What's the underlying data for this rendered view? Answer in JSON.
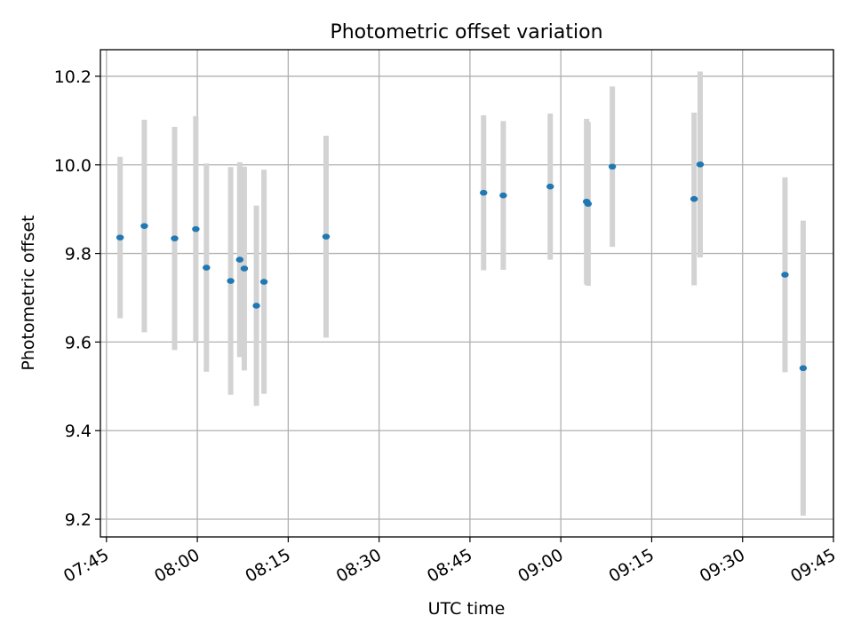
{
  "chart_data": {
    "type": "scatter",
    "title": "Photometric offset variation",
    "xlabel": "UTC time",
    "ylabel": "Photometric offset",
    "xlim": [
      "07:44",
      "09:45"
    ],
    "ylim": [
      9.16,
      10.26
    ],
    "xticks": [
      "07:45",
      "08:00",
      "08:15",
      "08:30",
      "08:45",
      "09:00",
      "09:15",
      "09:30",
      "09:45"
    ],
    "yticks": [
      9.2,
      9.4,
      9.6,
      9.8,
      10.0,
      10.2
    ],
    "grid": true,
    "point_color": "#1f77b4",
    "errorbar_color": "#d3d3d3",
    "series": [
      {
        "points": [
          {
            "x": "07:47:15",
            "y": 9.836,
            "err": 0.182
          },
          {
            "x": "07:51:15",
            "y": 9.862,
            "err": 0.24
          },
          {
            "x": "07:56:15",
            "y": 9.834,
            "err": 0.252
          },
          {
            "x": "07:59:45",
            "y": 9.855,
            "err": 0.255
          },
          {
            "x": "08:01:30",
            "y": 9.768,
            "err": 0.235
          },
          {
            "x": "08:05:30",
            "y": 9.738,
            "err": 0.257
          },
          {
            "x": "08:07:00",
            "y": 9.786,
            "err": 0.22
          },
          {
            "x": "08:07:45",
            "y": 9.766,
            "err": 0.23
          },
          {
            "x": "08:09:45",
            "y": 9.682,
            "err": 0.226
          },
          {
            "x": "08:11:00",
            "y": 9.736,
            "err": 0.253
          },
          {
            "x": "08:21:15",
            "y": 9.838,
            "err": 0.228
          },
          {
            "x": "08:47:15",
            "y": 9.937,
            "err": 0.175
          },
          {
            "x": "08:50:30",
            "y": 9.931,
            "err": 0.168
          },
          {
            "x": "08:58:15",
            "y": 9.951,
            "err": 0.165
          },
          {
            "x": "09:04:15",
            "y": 9.917,
            "err": 0.187
          },
          {
            "x": "09:04:30",
            "y": 9.912,
            "err": 0.185
          },
          {
            "x": "09:08:30",
            "y": 9.996,
            "err": 0.181
          },
          {
            "x": "09:22:00",
            "y": 9.923,
            "err": 0.195
          },
          {
            "x": "09:23:00",
            "y": 10.001,
            "err": 0.21
          },
          {
            "x": "09:37:00",
            "y": 9.752,
            "err": 0.22
          },
          {
            "x": "09:40:00",
            "y": 9.541,
            "err": 0.333
          }
        ]
      }
    ]
  }
}
